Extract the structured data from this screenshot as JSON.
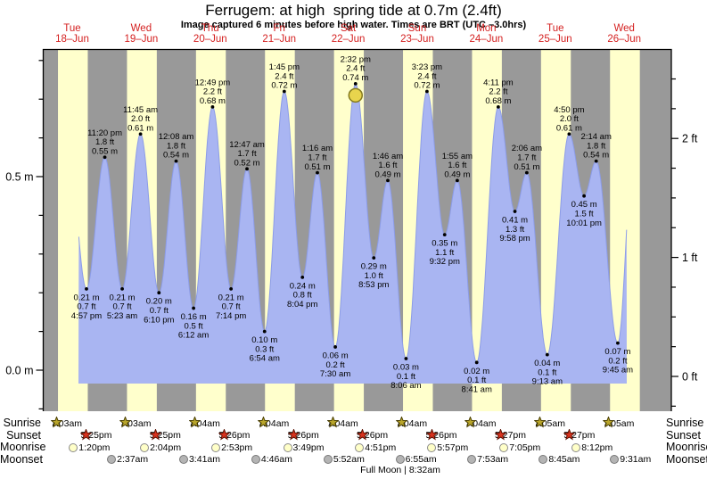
{
  "header": {
    "title": "Ferrugem: at high  spring tide at 0.7m (2.4ft)",
    "subtitle": "Image captured 6 minutes before high water. Times are BRT (UTC –3.0hrs)"
  },
  "colors": {
    "night_band": "#999999",
    "day_band": "#ffffcc",
    "tide_fill": "#a9b5f2",
    "tide_edge": "#8c9ce8",
    "date_red": "#d42020",
    "sunrise_star": "#b9a62c",
    "sunset_star": "#d8321e",
    "moonrise_fill": "#ffffc8",
    "moonset_fill": "#b4b4b4",
    "current_marker": "#e8d44d"
  },
  "chart_data": {
    "type": "area",
    "title": "Ferrugem: at high  spring tide at 0.7m (2.4ft)",
    "ylabel_left": "meters",
    "ylabel_right": "feet",
    "ylim_m": [
      -0.12,
      0.82
    ],
    "grid": false,
    "days": [
      {
        "dow": "Tue",
        "date": "18–Jun"
      },
      {
        "dow": "Wed",
        "date": "19–Jun"
      },
      {
        "dow": "Thu",
        "date": "20–Jun"
      },
      {
        "dow": "Fri",
        "date": "21–Jun"
      },
      {
        "dow": "Sat",
        "date": "22–Jun"
      },
      {
        "dow": "Sun",
        "date": "23–Jun"
      },
      {
        "dow": "Mon",
        "date": "24–Jun"
      },
      {
        "dow": "Tue",
        "date": "25–Jun"
      },
      {
        "dow": "Wed",
        "date": "26–Jun"
      }
    ],
    "left_ticks": [
      {
        "label": "0.5 m",
        "m": 0.5
      },
      {
        "label": "0.0 m",
        "m": 0.0
      }
    ],
    "right_ticks": [
      {
        "label": "2 ft",
        "ft": 2
      },
      {
        "label": "1 ft",
        "ft": 1
      },
      {
        "label": "0 ft",
        "ft": 0
      }
    ],
    "tides": [
      {
        "day": 0,
        "type": "low",
        "time": "4:57 pm",
        "m": "0.21",
        "ft": "0.7"
      },
      {
        "day": 0,
        "type": "high",
        "time": "11:20 pm",
        "m": "0.55",
        "ft": "1.8"
      },
      {
        "day": 1,
        "type": "low",
        "time": "5:23 am",
        "m": "0.21",
        "ft": "0.7"
      },
      {
        "day": 1,
        "type": "high",
        "time": "11:45 am",
        "m": "0.61",
        "ft": "2.0"
      },
      {
        "day": 1,
        "type": "low",
        "time": "6:10 pm",
        "m": "0.20",
        "ft": "0.7"
      },
      {
        "day": 2,
        "type": "high",
        "time": "12:08 am",
        "m": "0.54",
        "ft": "1.8"
      },
      {
        "day": 2,
        "type": "low",
        "time": "6:12 am",
        "m": "0.16",
        "ft": "0.5"
      },
      {
        "day": 2,
        "type": "high",
        "time": "12:49 pm",
        "m": "0.68",
        "ft": "2.2"
      },
      {
        "day": 2,
        "type": "low",
        "time": "7:14 pm",
        "m": "0.21",
        "ft": "0.7"
      },
      {
        "day": 3,
        "type": "high",
        "time": "12:47 am",
        "m": "0.52",
        "ft": "1.7"
      },
      {
        "day": 3,
        "type": "low",
        "time": "6:54 am",
        "m": "0.10",
        "ft": "0.3"
      },
      {
        "day": 3,
        "type": "high",
        "time": "1:45 pm",
        "m": "0.72",
        "ft": "2.4"
      },
      {
        "day": 3,
        "type": "low",
        "time": "8:04 pm",
        "m": "0.24",
        "ft": "0.8"
      },
      {
        "day": 4,
        "type": "high",
        "time": "1:16 am",
        "m": "0.51",
        "ft": "1.7"
      },
      {
        "day": 4,
        "type": "low",
        "time": "7:30 am",
        "m": "0.06",
        "ft": "0.2"
      },
      {
        "day": 4,
        "type": "high",
        "time": "2:32 pm",
        "m": "0.74",
        "ft": "2.4"
      },
      {
        "day": 4,
        "type": "low",
        "time": "8:53 pm",
        "m": "0.29",
        "ft": "1.0"
      },
      {
        "day": 5,
        "type": "high",
        "time": "1:46 am",
        "m": "0.49",
        "ft": "1.6"
      },
      {
        "day": 5,
        "type": "low",
        "time": "8:06 am",
        "m": "0.03",
        "ft": "0.1"
      },
      {
        "day": 5,
        "type": "high",
        "time": "3:23 pm",
        "m": "0.72",
        "ft": "2.4"
      },
      {
        "day": 5,
        "type": "low",
        "time": "9:32 pm",
        "m": "0.35",
        "ft": "1.1"
      },
      {
        "day": 6,
        "type": "high",
        "time": "1:55 am",
        "m": "0.49",
        "ft": "1.6"
      },
      {
        "day": 6,
        "type": "low",
        "time": "8:41 am",
        "m": "0.02",
        "ft": "0.1"
      },
      {
        "day": 6,
        "type": "high",
        "time": "4:11 pm",
        "m": "0.68",
        "ft": "2.2"
      },
      {
        "day": 6,
        "type": "low",
        "time": "9:58 pm",
        "m": "0.41",
        "ft": "1.3"
      },
      {
        "day": 7,
        "type": "high",
        "time": "2:06 am",
        "m": "0.51",
        "ft": "1.7"
      },
      {
        "day": 7,
        "type": "low",
        "time": "9:13 am",
        "m": "0.04",
        "ft": "0.1"
      },
      {
        "day": 7,
        "type": "high",
        "time": "4:50 pm",
        "m": "0.61",
        "ft": "2.0"
      },
      {
        "day": 7,
        "type": "low",
        "time": "10:01 pm",
        "m": "0.45",
        "ft": "1.5"
      },
      {
        "day": 8,
        "type": "high",
        "time": "2:14 am",
        "m": "0.54",
        "ft": "1.8"
      },
      {
        "day": 8,
        "type": "low",
        "time": "9:45 am",
        "m": "0.07",
        "ft": "0.2"
      }
    ],
    "current_position": {
      "day": 4,
      "time": "2:32 pm",
      "m": "0.74",
      "ft": "2.4"
    }
  },
  "almanac": {
    "rows": [
      {
        "label": "Sunrise",
        "icon": "sunrise-star",
        "entries": [
          {
            "day": 0,
            "time": "7:03am"
          },
          {
            "day": 1,
            "time": "7:03am"
          },
          {
            "day": 2,
            "time": "7:04am"
          },
          {
            "day": 3,
            "time": "7:04am"
          },
          {
            "day": 4,
            "time": "7:04am"
          },
          {
            "day": 5,
            "time": "7:04am"
          },
          {
            "day": 6,
            "time": "7:04am"
          },
          {
            "day": 7,
            "time": "7:05am"
          },
          {
            "day": 8,
            "time": "7:05am"
          }
        ]
      },
      {
        "label": "Sunset",
        "icon": "sunset-star",
        "entries": [
          {
            "day": 0,
            "time": "5:25pm"
          },
          {
            "day": 1,
            "time": "5:25pm"
          },
          {
            "day": 2,
            "time": "5:26pm"
          },
          {
            "day": 3,
            "time": "5:26pm"
          },
          {
            "day": 4,
            "time": "5:26pm"
          },
          {
            "day": 5,
            "time": "5:26pm"
          },
          {
            "day": 6,
            "time": "5:27pm"
          },
          {
            "day": 7,
            "time": "5:27pm"
          }
        ]
      },
      {
        "label": "Moonrise",
        "icon": "moonrise-circle",
        "entries": [
          {
            "day": 0,
            "time": "1:20pm"
          },
          {
            "day": 1,
            "time": "2:04pm"
          },
          {
            "day": 2,
            "time": "2:53pm"
          },
          {
            "day": 3,
            "time": "3:49pm"
          },
          {
            "day": 4,
            "time": "4:51pm"
          },
          {
            "day": 5,
            "time": "5:57pm"
          },
          {
            "day": 6,
            "time": "7:05pm"
          },
          {
            "day": 7,
            "time": "8:12pm"
          }
        ]
      },
      {
        "label": "Moonset",
        "icon": "moonset-circle",
        "entries": [
          {
            "day": 1,
            "time": "2:37am"
          },
          {
            "day": 2,
            "time": "3:41am"
          },
          {
            "day": 3,
            "time": "4:46am"
          },
          {
            "day": 4,
            "time": "5:52am"
          },
          {
            "day": 5,
            "time": "6:55am"
          },
          {
            "day": 6,
            "time": "7:53am"
          },
          {
            "day": 7,
            "time": "8:45am"
          },
          {
            "day": 8,
            "time": "9:31am"
          }
        ]
      }
    ],
    "footer": "Full Moon | 8:32am"
  }
}
